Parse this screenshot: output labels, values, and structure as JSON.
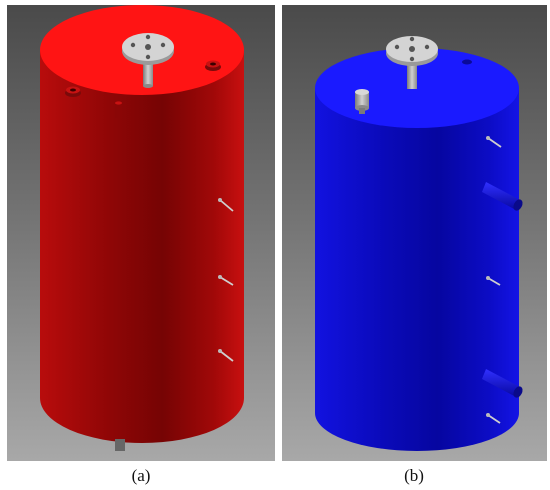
{
  "figure": {
    "panels": [
      {
        "id": "a",
        "caption": "(a)",
        "tank_color": "red"
      },
      {
        "id": "b",
        "caption": "(b)",
        "tank_color": "blue"
      }
    ],
    "colors": {
      "background_light": "#a5a5a5",
      "background_dark": "#4a4a4a",
      "tank_a_body": "#c41010",
      "tank_a_top": "#ff1a1a",
      "tank_b_body": "#1010d8",
      "tank_b_top": "#1a1aff",
      "fitting_grey": "#c8c8c8"
    }
  }
}
